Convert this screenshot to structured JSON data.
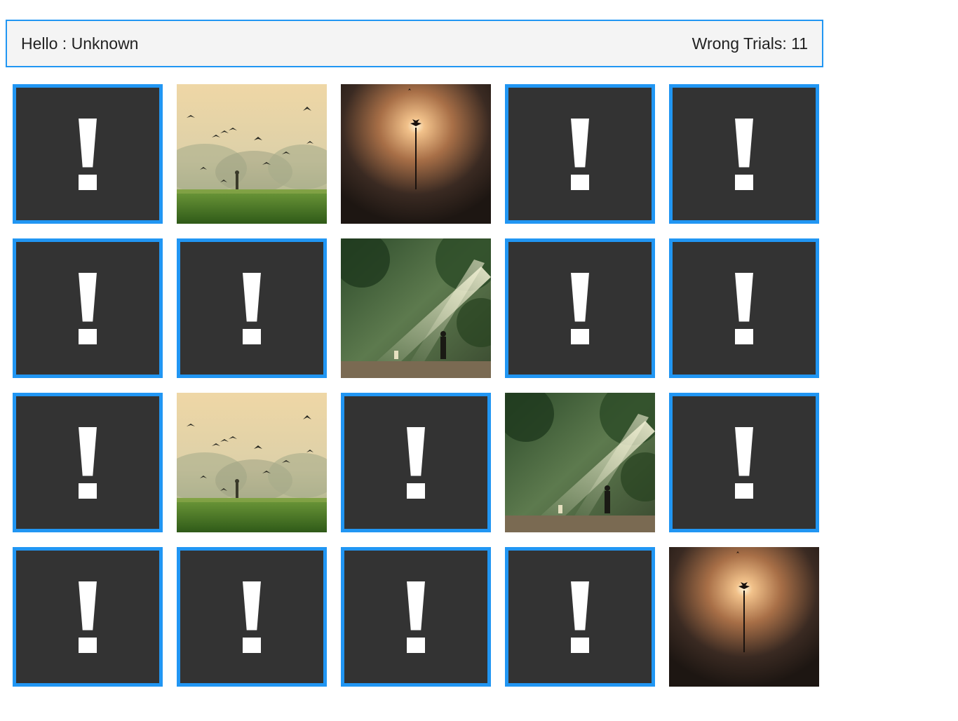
{
  "header": {
    "greeting": "Hello : Unknown",
    "wrong_trials": "Wrong Trials: 11"
  },
  "board": {
    "rows": 4,
    "cols": 5,
    "cards": [
      {
        "state": "hidden"
      },
      {
        "state": "revealed",
        "image": "birds-field"
      },
      {
        "state": "revealed",
        "image": "palm-sunrise"
      },
      {
        "state": "hidden"
      },
      {
        "state": "hidden"
      },
      {
        "state": "hidden"
      },
      {
        "state": "hidden"
      },
      {
        "state": "revealed",
        "image": "forest-sunrays"
      },
      {
        "state": "hidden"
      },
      {
        "state": "hidden"
      },
      {
        "state": "hidden"
      },
      {
        "state": "revealed",
        "image": "birds-field"
      },
      {
        "state": "hidden"
      },
      {
        "state": "revealed",
        "image": "forest-sunrays"
      },
      {
        "state": "hidden"
      },
      {
        "state": "hidden"
      },
      {
        "state": "hidden"
      },
      {
        "state": "hidden"
      },
      {
        "state": "hidden"
      },
      {
        "state": "revealed",
        "image": "palm-sunrise"
      }
    ]
  },
  "colors": {
    "accent": "#2196f3",
    "card_back": "#333333",
    "header_bg": "#f4f4f4"
  }
}
